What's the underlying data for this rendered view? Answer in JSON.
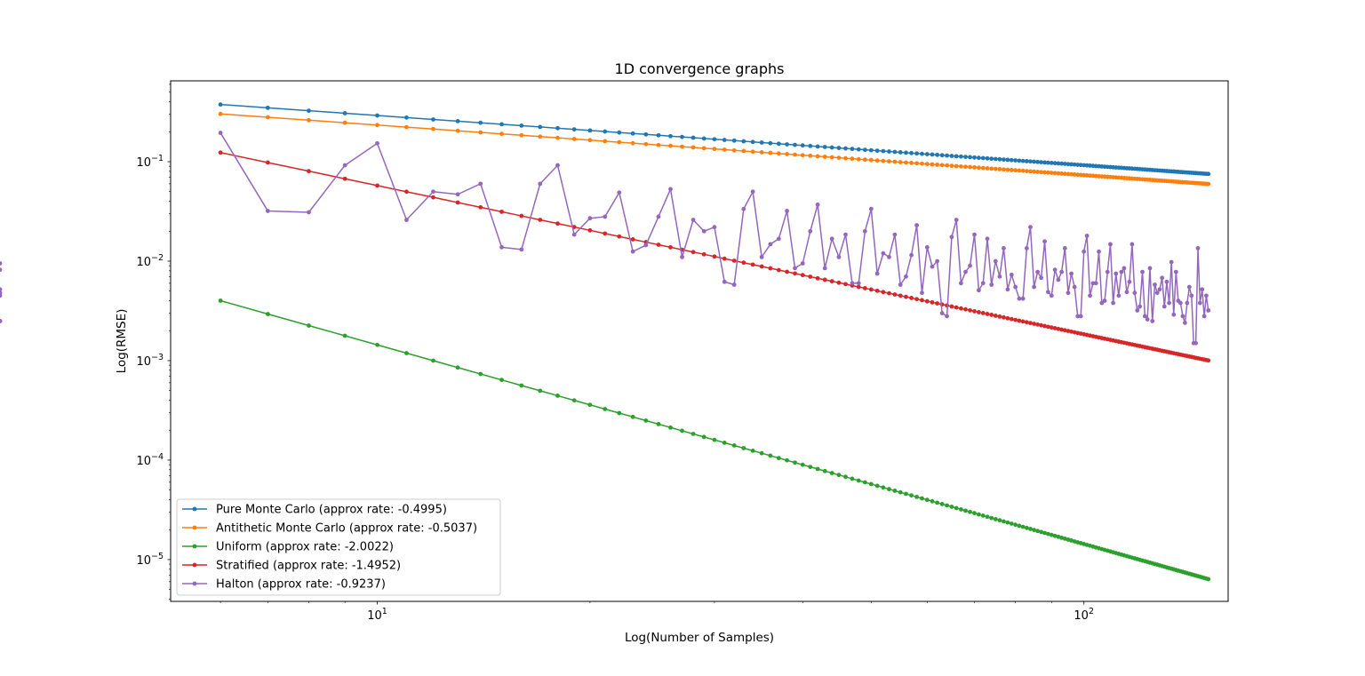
{
  "chart_data": {
    "type": "line",
    "title": "1D convergence graphs",
    "xlabel": "Log(Number of Samples)",
    "ylabel": "Log(RMSE)",
    "xscale": "log",
    "yscale": "log",
    "xlim": [
      5.1,
      160
    ],
    "ylim": [
      3.8e-06,
      0.65
    ],
    "grid": false,
    "legend_placement": "lower-left",
    "x": {
      "start": 6,
      "end": 150
    },
    "x_ticks": [
      {
        "value": 10,
        "base": "10",
        "exp": "1"
      },
      {
        "value": 100,
        "base": "10",
        "exp": "2"
      }
    ],
    "y_ticks": [
      {
        "value": 1e-05,
        "base": "10",
        "exp": "−5"
      },
      {
        "value": 0.0001,
        "base": "10",
        "exp": "−4"
      },
      {
        "value": 0.001,
        "base": "10",
        "exp": "−3"
      },
      {
        "value": 0.01,
        "base": "10",
        "exp": "−2"
      },
      {
        "value": 0.1,
        "base": "10",
        "exp": "−1"
      }
    ],
    "series": [
      {
        "name": "Pure Monte Carlo (approx rate: -0.4995)",
        "color": "#1f77b4",
        "coef": 0.92,
        "rate": -0.4995
      },
      {
        "name": "Antithetic Monte Carlo (approx rate: -0.5037)",
        "color": "#ff7f0e",
        "coef": 0.745,
        "rate": -0.5037
      },
      {
        "name": "Uniform (approx rate: -2.0022)",
        "color": "#2ca02c",
        "coef": 0.1448,
        "rate": -2.0022
      },
      {
        "name": "Stratified (approx rate: -1.4952)",
        "color": "#d62728",
        "coef": 1.8,
        "rate": -1.4952
      },
      {
        "name": "Halton (approx rate: -0.9237)",
        "color": "#9467bd",
        "values": [
          0.195,
          0.032,
          0.031,
          0.092,
          0.153,
          0.026,
          0.05,
          0.047,
          0.06,
          0.0138,
          0.0131,
          0.06,
          0.092,
          0.0185,
          0.027,
          0.028,
          0.049,
          0.0125,
          0.0145,
          0.028,
          0.053,
          0.011,
          0.026,
          0.02,
          0.022,
          0.0062,
          0.0058,
          0.0335,
          0.05,
          0.011,
          0.0148,
          0.0168,
          0.032,
          0.0085,
          0.0095,
          0.02,
          0.037,
          0.0085,
          0.0168,
          0.011,
          0.0185,
          0.006,
          0.006,
          0.02,
          0.0335,
          0.0075,
          0.012,
          0.011,
          0.0185,
          0.0058,
          0.007,
          0.0115,
          0.023,
          0.0048,
          0.0138,
          0.0088,
          0.01,
          0.003,
          0.0028,
          0.0175,
          0.026,
          0.006,
          0.0078,
          0.009,
          0.0185,
          0.0051,
          0.006,
          0.0168,
          0.0058,
          0.01,
          0.007,
          0.0135,
          0.0052,
          0.0073,
          0.0055,
          0.0042,
          0.0042,
          0.0135,
          0.022,
          0.0055,
          0.0078,
          0.0068,
          0.0158,
          0.0049,
          0.0045,
          0.0082,
          0.0065,
          0.0078,
          0.0135,
          0.0048,
          0.0075,
          0.0055,
          0.0028,
          0.0028,
          0.0125,
          0.018,
          0.0045,
          0.006,
          0.006,
          0.0125,
          0.0038,
          0.004,
          0.0078,
          0.0148,
          0.0038,
          0.0075,
          0.0045,
          0.0078,
          0.0085,
          0.0049,
          0.0062,
          0.0148,
          0.0048,
          0.0032,
          0.0035,
          0.0078,
          0.0028,
          0.0026,
          0.0085,
          0.0025,
          0.0058,
          0.0048,
          0.0052,
          0.0068,
          0.0035,
          0.0062,
          0.0038,
          0.0098,
          0.0029,
          0.0078,
          0.004,
          0.0038,
          0.0028,
          0.0024,
          0.0038,
          0.0055,
          0.0045,
          0.0015,
          0.0015,
          0.0135,
          0.0038,
          0.0052,
          0.0028,
          0.0045,
          0.0032,
          0.0052,
          0.0025,
          0.0025,
          0.0048,
          0.0025,
          0.0095,
          0.0045,
          0.0048,
          0.0082
        ]
      }
    ]
  }
}
